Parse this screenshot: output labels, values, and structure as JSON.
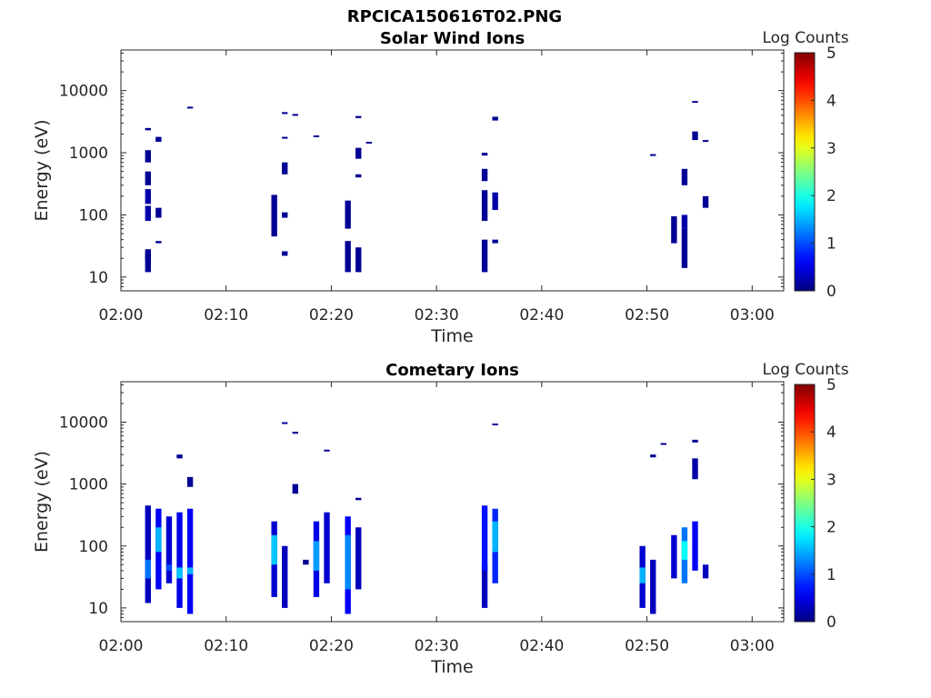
{
  "figure": {
    "title": "RPCICA150616T02.PNG"
  },
  "chart_data": [
    {
      "type": "heatmap",
      "title": "Solar Wind Ions",
      "xlabel": "Time",
      "ylabel": "Energy (eV)",
      "y_scale": "log",
      "xlim": [
        "02:00",
        "03:03"
      ],
      "ylim": [
        6,
        45000
      ],
      "x_ticks": [
        "02:00",
        "02:10",
        "02:20",
        "02:30",
        "02:40",
        "02:50",
        "03:00"
      ],
      "y_ticks": [
        "10",
        "100",
        "1000",
        "10000"
      ],
      "colorbar": {
        "label": "Log Counts",
        "range": [
          0,
          5
        ],
        "ticks": [
          "0",
          "1",
          "2",
          "3",
          "4",
          "5"
        ],
        "colormap": "jet"
      },
      "cells": [
        [
          "02:02",
          12,
          28,
          0.1
        ],
        [
          "02:02",
          18,
          25,
          0.1
        ],
        [
          "02:02",
          80,
          140,
          0.2
        ],
        [
          "02:02",
          150,
          260,
          0.2
        ],
        [
          "02:02",
          300,
          500,
          0.1
        ],
        [
          "02:02",
          700,
          1100,
          0.1
        ],
        [
          "02:02",
          2300,
          2500,
          0.1
        ],
        [
          "02:03",
          90,
          130,
          0.1
        ],
        [
          "02:03",
          35,
          38,
          0.1
        ],
        [
          "02:03",
          1500,
          1800,
          0.1
        ],
        [
          "02:06",
          5200,
          5500,
          0.1
        ],
        [
          "02:14",
          45,
          210,
          0.1
        ],
        [
          "02:15",
          22,
          26,
          0.1
        ],
        [
          "02:15",
          90,
          110,
          0.1
        ],
        [
          "02:15",
          450,
          700,
          0.1
        ],
        [
          "02:15",
          1700,
          1800,
          0.1
        ],
        [
          "02:15",
          4200,
          4500,
          0.1
        ],
        [
          "02:16",
          4000,
          4200,
          0.1
        ],
        [
          "02:18",
          1800,
          1900,
          0.1
        ],
        [
          "02:21",
          12,
          38,
          0.1
        ],
        [
          "02:21",
          60,
          170,
          0.1
        ],
        [
          "02:22",
          12,
          30,
          0.1
        ],
        [
          "02:22",
          400,
          450,
          0.1
        ],
        [
          "02:22",
          800,
          1200,
          0.1
        ],
        [
          "02:22",
          3600,
          3900,
          0.1
        ],
        [
          "02:23",
          1400,
          1500,
          0.1
        ],
        [
          "02:34",
          12,
          40,
          0.1
        ],
        [
          "02:34",
          80,
          250,
          0.1
        ],
        [
          "02:34",
          350,
          550,
          0.1
        ],
        [
          "02:34",
          900,
          1000,
          0.1
        ],
        [
          "02:35",
          120,
          230,
          0.2
        ],
        [
          "02:35",
          35,
          40,
          0.1
        ],
        [
          "02:35",
          3300,
          3800,
          0.1
        ],
        [
          "02:50",
          900,
          950,
          0.1
        ],
        [
          "02:52",
          35,
          95,
          0.1
        ],
        [
          "02:53",
          14,
          60,
          0.1
        ],
        [
          "02:53",
          60,
          100,
          0.2
        ],
        [
          "02:53",
          300,
          550,
          0.1
        ],
        [
          "02:54",
          1600,
          2200,
          0.1
        ],
        [
          "02:54",
          6500,
          6800,
          0.1
        ],
        [
          "02:55",
          130,
          200,
          0.1
        ],
        [
          "02:55",
          1500,
          1600,
          0.1
        ]
      ]
    },
    {
      "type": "heatmap",
      "title": "Cometary Ions",
      "xlabel": "Time",
      "ylabel": "Energy (eV)",
      "y_scale": "log",
      "xlim": [
        "02:00",
        "03:03"
      ],
      "ylim": [
        6,
        45000
      ],
      "x_ticks": [
        "02:00",
        "02:10",
        "02:20",
        "02:30",
        "02:40",
        "02:50",
        "03:00"
      ],
      "y_ticks": [
        "10",
        "100",
        "1000",
        "10000"
      ],
      "colorbar": {
        "label": "Log Counts",
        "range": [
          0,
          5
        ],
        "ticks": [
          "0",
          "1",
          "2",
          "3",
          "4",
          "5"
        ],
        "colormap": "jet"
      },
      "cells": [
        [
          "02:02",
          12,
          450,
          0.3
        ],
        [
          "02:02",
          30,
          60,
          1.2
        ],
        [
          "02:03",
          20,
          400,
          0.6
        ],
        [
          "02:03",
          80,
          200,
          1.5
        ],
        [
          "02:04",
          25,
          300,
          0.4
        ],
        [
          "02:04",
          40,
          50,
          1.0
        ],
        [
          "02:05",
          10,
          350,
          0.5
        ],
        [
          "02:05",
          30,
          45,
          1.6
        ],
        [
          "02:05",
          2600,
          3000,
          0.1
        ],
        [
          "02:06",
          8,
          400,
          0.6
        ],
        [
          "02:06",
          35,
          45,
          1.5
        ],
        [
          "02:06",
          900,
          1300,
          0.1
        ],
        [
          "02:14",
          15,
          250,
          0.4
        ],
        [
          "02:14",
          50,
          150,
          1.6
        ],
        [
          "02:15",
          10,
          100,
          0.3
        ],
        [
          "02:15",
          9500,
          10000,
          0.1
        ],
        [
          "02:16",
          700,
          1000,
          0.1
        ],
        [
          "02:16",
          6500,
          7000,
          0.1
        ],
        [
          "02:17",
          50,
          60,
          0.1
        ],
        [
          "02:18",
          15,
          250,
          0.5
        ],
        [
          "02:18",
          40,
          120,
          1.4
        ],
        [
          "02:19",
          25,
          350,
          0.4
        ],
        [
          "02:19",
          3400,
          3600,
          0.1
        ],
        [
          "02:21",
          8,
          300,
          0.6
        ],
        [
          "02:21",
          20,
          150,
          1.3
        ],
        [
          "02:22",
          20,
          200,
          0.3
        ],
        [
          "02:22",
          550,
          600,
          0.1
        ],
        [
          "02:34",
          10,
          50,
          0.3
        ],
        [
          "02:34",
          40,
          450,
          0.7
        ],
        [
          "02:35",
          25,
          400,
          0.8
        ],
        [
          "02:35",
          80,
          250,
          1.5
        ],
        [
          "02:35",
          9000,
          9500,
          0.1
        ],
        [
          "02:49",
          10,
          100,
          0.4
        ],
        [
          "02:49",
          25,
          45,
          1.5
        ],
        [
          "02:50",
          8,
          60,
          0.3
        ],
        [
          "02:50",
          2700,
          3000,
          0.1
        ],
        [
          "02:51",
          4300,
          4600,
          0.1
        ],
        [
          "02:52",
          30,
          150,
          0.4
        ],
        [
          "02:53",
          25,
          200,
          1.2
        ],
        [
          "02:53",
          60,
          120,
          1.9
        ],
        [
          "02:54",
          40,
          250,
          0.6
        ],
        [
          "02:54",
          1200,
          2600,
          0.2
        ],
        [
          "02:54",
          4700,
          5200,
          0.1
        ],
        [
          "02:55",
          30,
          50,
          0.3
        ]
      ]
    }
  ]
}
